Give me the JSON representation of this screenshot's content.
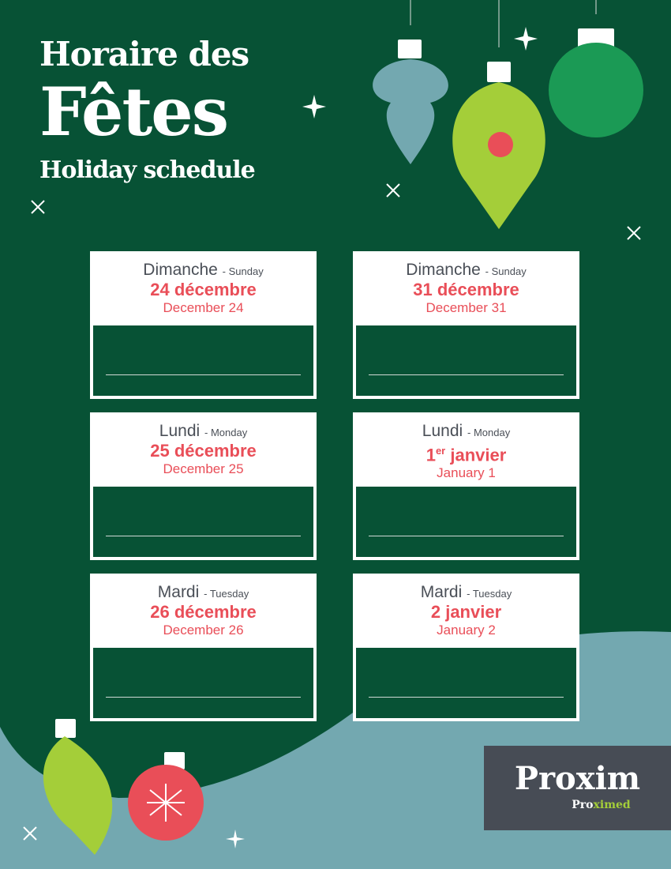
{
  "title": {
    "line1": "Horaire des",
    "line2": "Fêtes",
    "line3": "Holiday schedule"
  },
  "colors": {
    "background": "#075235",
    "wave": "#73a8b0",
    "accent": "#e94e58",
    "lime": "#a4ce39",
    "logo_bg": "#474c55"
  },
  "days": [
    {
      "fr_day": "Dimanche",
      "en_day": "- Sunday",
      "fr_date": "24 décembre",
      "fr_sup": "",
      "en_date": "December 24"
    },
    {
      "fr_day": "Dimanche",
      "en_day": "- Sunday",
      "fr_date": "31 décembre",
      "fr_sup": "",
      "en_date": "December 31"
    },
    {
      "fr_day": "Lundi",
      "en_day": "- Monday",
      "fr_date": "25 décembre",
      "fr_sup": "",
      "en_date": "December 25"
    },
    {
      "fr_day": "Lundi",
      "en_day": "- Monday",
      "fr_date": "1",
      "fr_sup": "er",
      "fr_date_rest": " janvier",
      "en_date": "January 1"
    },
    {
      "fr_day": "Mardi",
      "en_day": "- Tuesday",
      "fr_date": "26 décembre",
      "fr_sup": "",
      "en_date": "December 26"
    },
    {
      "fr_day": "Mardi",
      "en_day": "- Tuesday",
      "fr_date": "2 janvier",
      "fr_sup": "",
      "en_date": "January 2"
    }
  ],
  "logo": {
    "brand": "Proxim",
    "sub_a": "Pro",
    "sub_b": "ximed"
  }
}
